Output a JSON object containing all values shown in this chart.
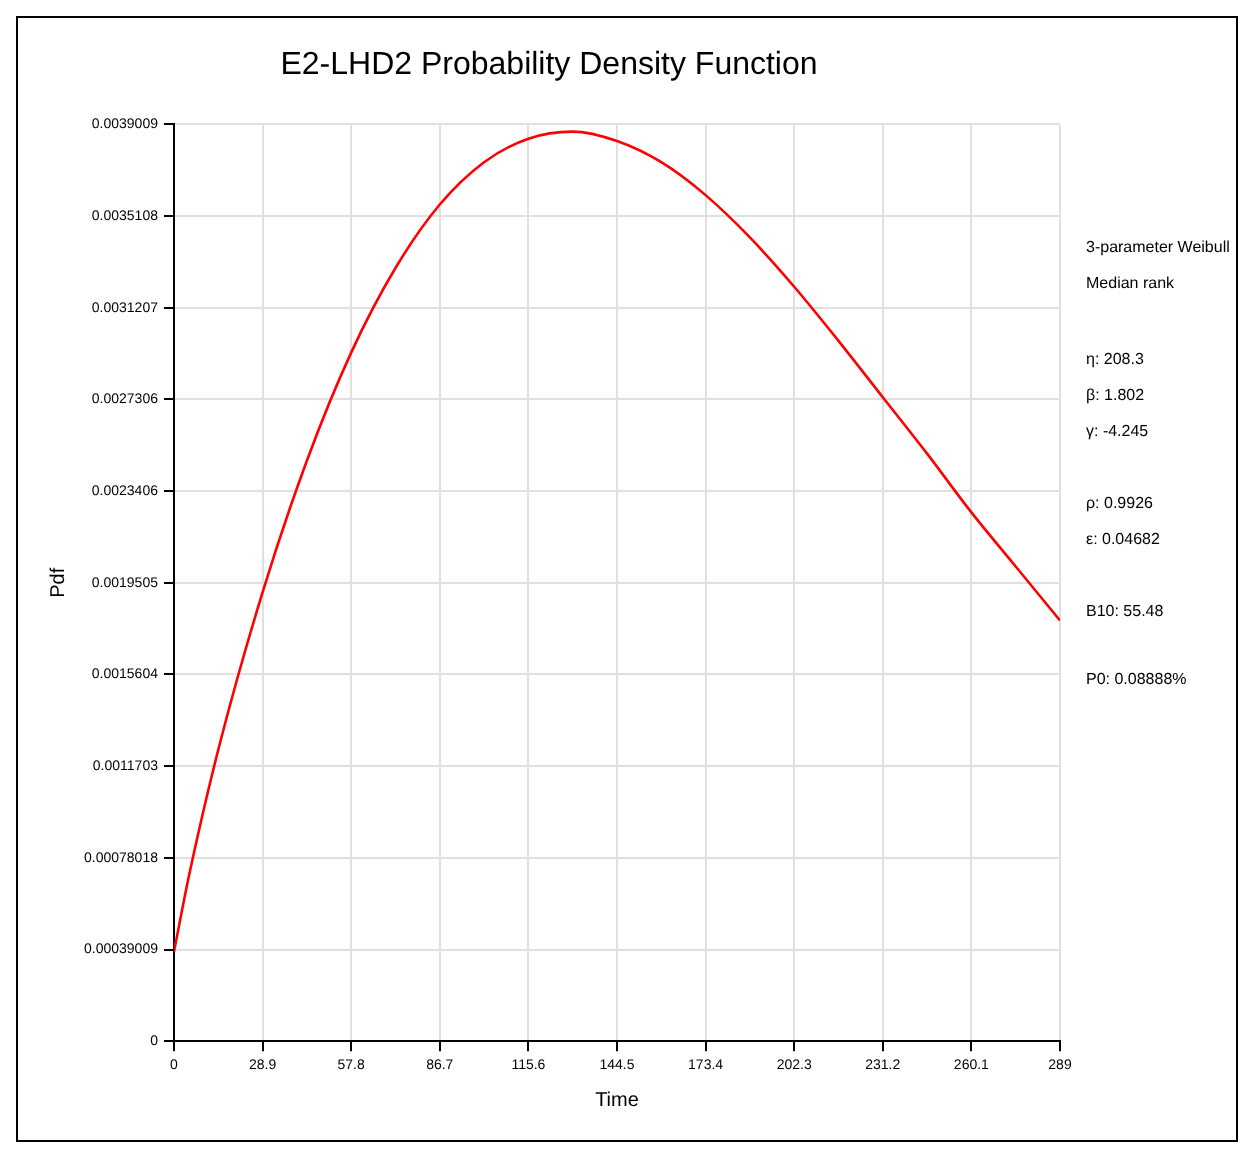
{
  "chart_data": {
    "type": "line",
    "title": "E2-LHD2 Probability Density Function",
    "xlabel": "Time",
    "ylabel": "Pdf",
    "x": [
      0,
      5,
      14.45,
      28.9,
      43.35,
      57.8,
      72.25,
      86.7,
      101.15,
      115.6,
      130.05,
      144.5,
      158.95,
      173.4,
      187.85,
      202.3,
      216.75,
      231.2,
      245.65,
      260.1,
      274.55,
      289
    ],
    "series": [
      {
        "color": "#ff0000",
        "values": [
          0.00038,
          0.00071,
          0.00124,
          0.00191,
          0.00247,
          0.00293,
          0.00329,
          0.00356,
          0.00374,
          0.00384,
          0.00387,
          0.00383,
          0.00374,
          0.0036,
          0.00342,
          0.00321,
          0.00298,
          0.00274,
          0.0025,
          0.00225,
          0.00202,
          0.00179
        ]
      }
    ],
    "xlim": [
      0,
      289
    ],
    "xticks": [
      0,
      28.9,
      57.8,
      86.7,
      115.6,
      144.5,
      173.4,
      202.3,
      231.2,
      260.1,
      289
    ],
    "ylim": [
      0,
      0.0039009
    ],
    "yticks": [
      0,
      0.00039009,
      0.00078018,
      0.0011703,
      0.0015604,
      0.0019505,
      0.0023406,
      0.0027306,
      0.0031207,
      0.0035108,
      0.0039009
    ],
    "annotations": [
      "3-parameter Weibull",
      "Median rank",
      "η: 208.3",
      "β: 1.802",
      "γ: -4.245",
      "ρ: 0.9926",
      "ε: 0.04682",
      "B10: 55.48",
      "P0: 0.08888%"
    ],
    "grid": true,
    "legend": false,
    "marker": "none",
    "line_style": "solid"
  }
}
